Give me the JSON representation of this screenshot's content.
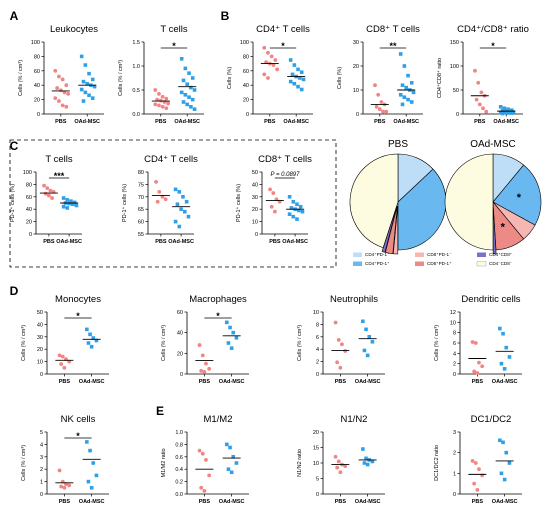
{
  "colors": {
    "pbs": "#F28482",
    "oad": "#2F9FE8",
    "axis": "#000000"
  },
  "panel_labels": [
    "A",
    "B",
    "C",
    "D",
    "E"
  ],
  "chart_data": [
    {
      "type": "scatter",
      "title": "Leukocytes",
      "ylabel": "Cells (% / cm³)",
      "categories": [
        "PBS",
        "OAd-MSC"
      ],
      "ylim": [
        0,
        100
      ],
      "yticks": [
        0,
        20,
        40,
        60,
        80,
        100
      ],
      "series": [
        {
          "name": "PBS",
          "mean": 32,
          "values": [
            60,
            52,
            48,
            40,
            36,
            33,
            30,
            28,
            22,
            18,
            12,
            10
          ]
        },
        {
          "name": "OAd-MSC",
          "mean": 40,
          "values": [
            80,
            68,
            56,
            48,
            45,
            42,
            40,
            38,
            34,
            30,
            26,
            22,
            18
          ]
        }
      ],
      "significance": []
    },
    {
      "type": "scatter",
      "title": "T cells",
      "ylabel": "Cells (% / cm³)",
      "categories": [
        "PBS",
        "OAd-MSC"
      ],
      "ylim": [
        0,
        1.5
      ],
      "yticks": [
        0.0,
        0.5,
        1.0,
        1.5
      ],
      "series": [
        {
          "name": "PBS",
          "mean": 0.27,
          "values": [
            0.5,
            0.42,
            0.36,
            0.32,
            0.3,
            0.28,
            0.25,
            0.22,
            0.2,
            0.18,
            0.15,
            0.12
          ]
        },
        {
          "name": "OAd-MSC",
          "mean": 0.57,
          "values": [
            1.15,
            0.95,
            0.85,
            0.75,
            0.7,
            0.62,
            0.55,
            0.5,
            0.45,
            0.4,
            0.35,
            0.3,
            0.25,
            0.2,
            0.15,
            0.1
          ]
        }
      ],
      "significance": [
        "*"
      ]
    },
    {
      "type": "scatter",
      "title": "CD4⁺ T cells",
      "ylabel": "Cells (%)",
      "categories": [
        "PBS",
        "OAd-MSC"
      ],
      "ylim": [
        0,
        100
      ],
      "yticks": [
        0,
        20,
        40,
        60,
        80,
        100
      ],
      "series": [
        {
          "name": "PBS",
          "mean": 70,
          "values": [
            92,
            85,
            80,
            75,
            72,
            70,
            68,
            62,
            55,
            50
          ]
        },
        {
          "name": "OAd-MSC",
          "mean": 52,
          "values": [
            75,
            68,
            62,
            58,
            55,
            52,
            50,
            48,
            45,
            42,
            38,
            34
          ]
        }
      ],
      "significance": [
        "*"
      ]
    },
    {
      "type": "scatter",
      "title": "CD8⁺ T cells",
      "ylabel": "Cells (%)",
      "categories": [
        "PBS",
        "OAd-MSC"
      ],
      "ylim": [
        0,
        30
      ],
      "yticks": [
        0,
        10,
        20,
        30
      ],
      "series": [
        {
          "name": "PBS",
          "mean": 4,
          "values": [
            12,
            8,
            5,
            4,
            3,
            2,
            1,
            1
          ]
        },
        {
          "name": "OAd-MSC",
          "mean": 10,
          "values": [
            25,
            20,
            16,
            13,
            12,
            11,
            10,
            9,
            8,
            7,
            6,
            5,
            4
          ]
        }
      ],
      "significance": [
        "**"
      ]
    },
    {
      "type": "scatter",
      "title": "CD4⁺/CD8⁺ ratio",
      "ylabel": "CD4⁺CD8⁺ ratio",
      "categories": [
        "PBS",
        "OAd-MSC"
      ],
      "ylim": [
        0,
        150
      ],
      "yticks": [
        0,
        50,
        100,
        150
      ],
      "series": [
        {
          "name": "PBS",
          "mean": 38,
          "values": [
            90,
            65,
            45,
            38,
            30,
            20,
            12,
            5
          ]
        },
        {
          "name": "OAd-MSC",
          "mean": 6,
          "values": [
            15,
            12,
            10,
            8,
            7,
            6,
            5,
            4,
            3,
            3,
            2,
            2,
            1
          ]
        }
      ],
      "significance": [
        "*"
      ]
    },
    {
      "type": "scatter",
      "title": "T cells",
      "ylabel": "PD-1⁺ cells (%)",
      "categories": [
        "PBS",
        "OAd-MSC"
      ],
      "ylim": [
        0,
        100
      ],
      "yticks": [
        0,
        20,
        40,
        60,
        80,
        100
      ],
      "series": [
        {
          "name": "PBS",
          "mean": 66,
          "values": [
            78,
            74,
            70,
            68,
            65,
            62,
            58
          ]
        },
        {
          "name": "OAd-MSC",
          "mean": 50,
          "values": [
            58,
            55,
            53,
            51,
            50,
            49,
            48,
            46,
            44,
            42
          ]
        }
      ],
      "significance": [
        "***"
      ]
    },
    {
      "type": "scatter",
      "title": "CD4⁺ T cells",
      "ylabel": "PD-1⁺ cells (%)",
      "categories": [
        "PBS",
        "OAd-MSC"
      ],
      "ylim": [
        55,
        80
      ],
      "yticks": [
        55,
        60,
        65,
        70,
        75,
        80
      ],
      "series": [
        {
          "name": "PBS",
          "mean": 70.5,
          "values": [
            76,
            72,
            70,
            69,
            68
          ]
        },
        {
          "name": "OAd-MSC",
          "mean": 66,
          "values": [
            73,
            72,
            70,
            68,
            67,
            65,
            64,
            62,
            60,
            58
          ]
        }
      ],
      "significance": []
    },
    {
      "type": "scatter",
      "title": "CD8⁺ T cells",
      "ylabel": "PD-1⁺ cells (%)",
      "categories": [
        "PBS",
        "OAd-MSC"
      ],
      "ylim": [
        0,
        50
      ],
      "yticks": [
        0,
        10,
        20,
        30,
        40,
        50
      ],
      "series": [
        {
          "name": "PBS",
          "mean": 27,
          "values": [
            36,
            33,
            28,
            26,
            22,
            18
          ]
        },
        {
          "name": "OAd-MSC",
          "mean": 20,
          "values": [
            30,
            26,
            24,
            22,
            21,
            20,
            19,
            18,
            16,
            14,
            12
          ]
        }
      ],
      "significance": [
        "P = 0.0897"
      ]
    },
    {
      "type": "scatter",
      "title": "Monocytes",
      "ylabel": "Cells (% / cm³)",
      "categories": [
        "PBS",
        "OAd-MSC"
      ],
      "ylim": [
        0,
        50
      ],
      "yticks": [
        0,
        10,
        20,
        30,
        40,
        50
      ],
      "series": [
        {
          "name": "PBS",
          "mean": 11,
          "values": [
            15,
            14,
            12,
            10,
            8,
            5
          ]
        },
        {
          "name": "OAd-MSC",
          "mean": 28,
          "values": [
            36,
            32,
            29,
            27,
            25,
            22
          ]
        }
      ],
      "significance": [
        "*"
      ]
    },
    {
      "type": "scatter",
      "title": "Macrophages",
      "ylabel": "Cells (% / cm³)",
      "categories": [
        "PBS",
        "OAd-MSC"
      ],
      "ylim": [
        0,
        60
      ],
      "yticks": [
        0,
        20,
        40,
        60
      ],
      "series": [
        {
          "name": "PBS",
          "mean": 13,
          "values": [
            28,
            18,
            10,
            5,
            3,
            2
          ]
        },
        {
          "name": "OAd-MSC",
          "mean": 37,
          "values": [
            50,
            45,
            40,
            35,
            30,
            25
          ]
        }
      ],
      "significance": [
        "*"
      ]
    },
    {
      "type": "scatter",
      "title": "Neutrophils",
      "ylabel": "Cells (% / cm³)",
      "categories": [
        "PBS",
        "OAd-MSC"
      ],
      "ylim": [
        0,
        10
      ],
      "yticks": [
        0,
        2,
        4,
        6,
        8,
        10
      ],
      "series": [
        {
          "name": "PBS",
          "mean": 3.8,
          "values": [
            8.3,
            5.5,
            4.8,
            3.7,
            1.9,
            1.0
          ]
        },
        {
          "name": "OAd-MSC",
          "mean": 5.7,
          "values": [
            8.5,
            7.2,
            6.0,
            5.2,
            3.8,
            3.0
          ]
        }
      ],
      "significance": []
    },
    {
      "type": "scatter",
      "title": "Dendritic cells",
      "ylabel": "Cells (% / cm³)",
      "categories": [
        "PBS",
        "OAd-MSC"
      ],
      "ylim": [
        0,
        12
      ],
      "yticks": [
        0,
        2,
        4,
        6,
        8,
        10,
        12
      ],
      "series": [
        {
          "name": "PBS",
          "mean": 3.0,
          "values": [
            6.2,
            6.0,
            2.2,
            1.5,
            0.5,
            0.2
          ]
        },
        {
          "name": "OAd-MSC",
          "mean": 4.4,
          "values": [
            8.8,
            7.8,
            5.1,
            3.3,
            2.0,
            1.0
          ]
        }
      ],
      "significance": []
    },
    {
      "type": "scatter",
      "title": "NK cells",
      "ylabel": "Cells (% / cm³)",
      "categories": [
        "PBS",
        "OAd-MSC"
      ],
      "ylim": [
        0,
        5
      ],
      "yticks": [
        0,
        1,
        2,
        3,
        4,
        5
      ],
      "series": [
        {
          "name": "PBS",
          "mean": 0.9,
          "values": [
            1.9,
            1.0,
            0.8,
            0.7,
            0.6,
            0.5
          ]
        },
        {
          "name": "OAd-MSC",
          "mean": 2.8,
          "values": [
            4.2,
            3.5,
            2.5,
            1.5,
            1.0,
            0.5
          ]
        }
      ],
      "significance": [
        "*"
      ]
    },
    {
      "type": "scatter",
      "title": "M1/M2",
      "ylabel": "M1/M2 ratio",
      "categories": [
        "PBS",
        "OAd-MSC"
      ],
      "ylim": [
        0,
        1.0
      ],
      "yticks": [
        0.0,
        0.2,
        0.4,
        0.6,
        0.8,
        1.0
      ],
      "series": [
        {
          "name": "PBS",
          "mean": 0.4,
          "values": [
            0.7,
            0.65,
            0.55,
            0.3,
            0.1,
            0.05
          ]
        },
        {
          "name": "OAd-MSC",
          "mean": 0.58,
          "values": [
            0.8,
            0.75,
            0.6,
            0.5,
            0.4,
            0.35
          ]
        }
      ],
      "significance": []
    },
    {
      "type": "scatter",
      "title": "N1/N2",
      "ylabel": "N1/N2 ratio",
      "categories": [
        "PBS",
        "OAd-MSC"
      ],
      "ylim": [
        0,
        20
      ],
      "yticks": [
        0,
        5,
        10,
        15,
        20
      ],
      "series": [
        {
          "name": "PBS",
          "mean": 9.5,
          "values": [
            12,
            10.5,
            9.5,
            9,
            8.5,
            7
          ]
        },
        {
          "name": "OAd-MSC",
          "mean": 11,
          "values": [
            14.5,
            11.5,
            11,
            10.5,
            10,
            9.5
          ]
        }
      ],
      "significance": []
    },
    {
      "type": "scatter",
      "title": "DC1/DC2",
      "ylabel": "DC1/DC2 ratio",
      "categories": [
        "PBS",
        "OAd-MSC"
      ],
      "ylim": [
        0,
        3
      ],
      "yticks": [
        0,
        1,
        2,
        3
      ],
      "series": [
        {
          "name": "PBS",
          "mean": 0.95,
          "values": [
            1.6,
            1.5,
            1.2,
            0.9,
            0.5,
            0.2
          ]
        },
        {
          "name": "OAd-MSC",
          "mean": 1.6,
          "values": [
            2.6,
            2.5,
            2.0,
            1.5,
            1.0,
            0.7
          ]
        }
      ],
      "significance": []
    },
    {
      "type": "pie",
      "title": "PBS",
      "slices": [
        {
          "label": "CD4⁺PD-1⁻",
          "value": 13,
          "color": "#BEDDF7",
          "exploded": false
        },
        {
          "label": "CD4⁺PD-1⁺",
          "value": 37,
          "color": "#6AB8F0",
          "exploded": false
        },
        {
          "label": "CD8⁺PD-1⁻",
          "value": 1.5,
          "color": "#F6B6B2",
          "exploded": true
        },
        {
          "label": "CD8⁺PD-1⁺",
          "value": 2.5,
          "color": "#EE8A86",
          "exploded": true
        },
        {
          "label": "CD4⁺CD8⁺",
          "value": 1,
          "color": "#7A72C8",
          "exploded": true
        },
        {
          "label": "CD4⁻CD8⁻",
          "value": 45,
          "color": "#FDFBE0",
          "exploded": false
        }
      ],
      "stars": []
    },
    {
      "type": "pie",
      "title": "OAd-MSC",
      "slices": [
        {
          "label": "CD4⁺PD-1⁻",
          "value": 11,
          "color": "#BEDDF7",
          "exploded": false
        },
        {
          "label": "CD4⁺PD-1⁺",
          "value": 22,
          "color": "#6AB8F0",
          "exploded": false
        },
        {
          "label": "CD8⁺PD-1⁻",
          "value": 6,
          "color": "#F6B6B2",
          "exploded": false
        },
        {
          "label": "CD8⁺PD-1⁺",
          "value": 10,
          "color": "#EE8A86",
          "exploded": false
        },
        {
          "label": "CD4⁺CD8⁺",
          "value": 1,
          "color": "#7A72C8",
          "exploded": true
        },
        {
          "label": "CD4⁻CD8⁻",
          "value": 50,
          "color": "#FDFBE0",
          "exploded": false
        }
      ],
      "stars": [
        "*",
        "*"
      ]
    }
  ],
  "pie_legend": [
    {
      "label": "CD4⁺PD-1⁻",
      "color": "#BEDDF7"
    },
    {
      "label": "CD8⁺PD-1⁻",
      "color": "#F6B6B2"
    },
    {
      "label": "CD4⁺CD8⁺",
      "color": "#7A72C8"
    },
    {
      "label": "CD4⁺PD-1⁺",
      "color": "#6AB8F0"
    },
    {
      "label": "CD8⁺PD-1⁺",
      "color": "#EE8A86"
    },
    {
      "label": "CD4⁻CD8⁻",
      "color": "#FDFBE0"
    }
  ]
}
